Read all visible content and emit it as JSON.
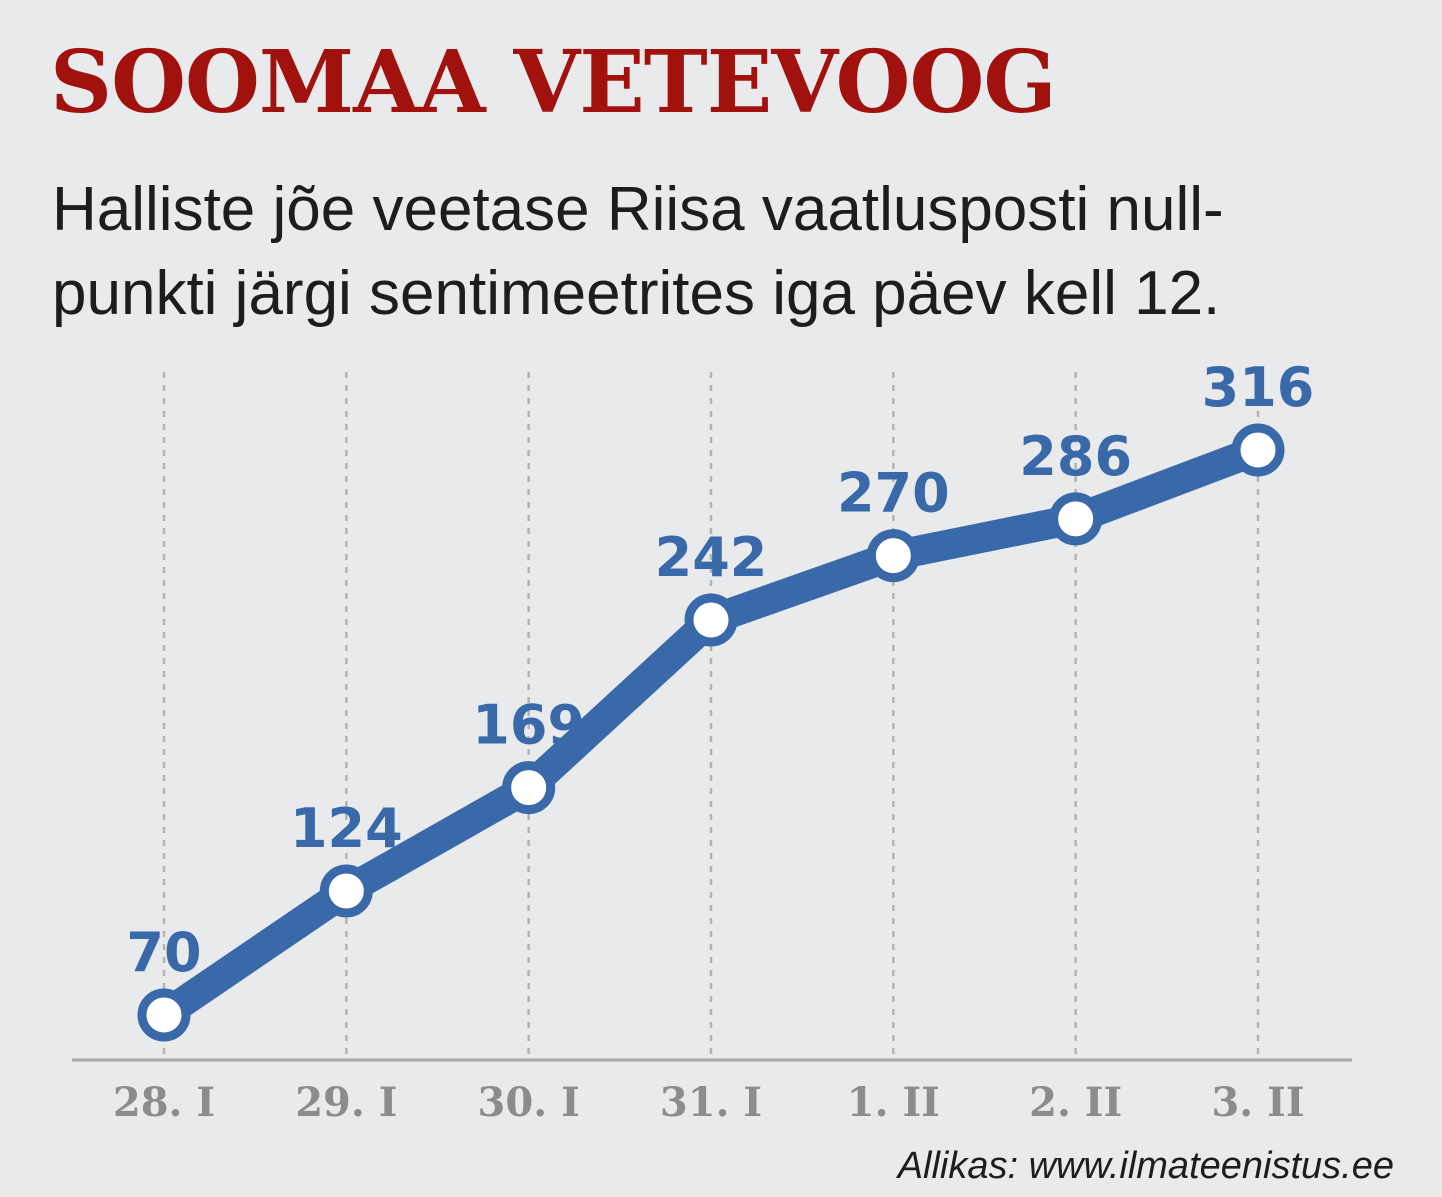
{
  "header": {
    "title": "SOOMAA VETEVOOG",
    "subtitle_line1": "Halliste jõe veetase Riisa vaatlusposti null-",
    "subtitle_line2": "punkti järgi sentimeetrites iga päev kell 12."
  },
  "source": "Allikas: www.ilmateenistus.ee",
  "colors": {
    "title": "#a1120e",
    "line": "#3a69a9",
    "value_label": "#3a69a9",
    "tick_label": "#8c8c8c",
    "gridline": "#b3b3b3",
    "axis": "#a8a8a8",
    "marker_fill": "#ffffff",
    "background": "#e9eaeb"
  },
  "chart_data": {
    "type": "line",
    "title": "SOOMAA VETEVOOG",
    "xlabel": "",
    "ylabel": "",
    "categories": [
      "28. I",
      "29. I",
      "30. I",
      "31. I",
      "1. II",
      "2. II",
      "3. II"
    ],
    "values": [
      70,
      124,
      169,
      242,
      270,
      286,
      316
    ],
    "data_labels": [
      "70",
      "124",
      "169",
      "242",
      "270",
      "286",
      "316"
    ],
    "grid": "vertical dashed",
    "legend": "none"
  }
}
